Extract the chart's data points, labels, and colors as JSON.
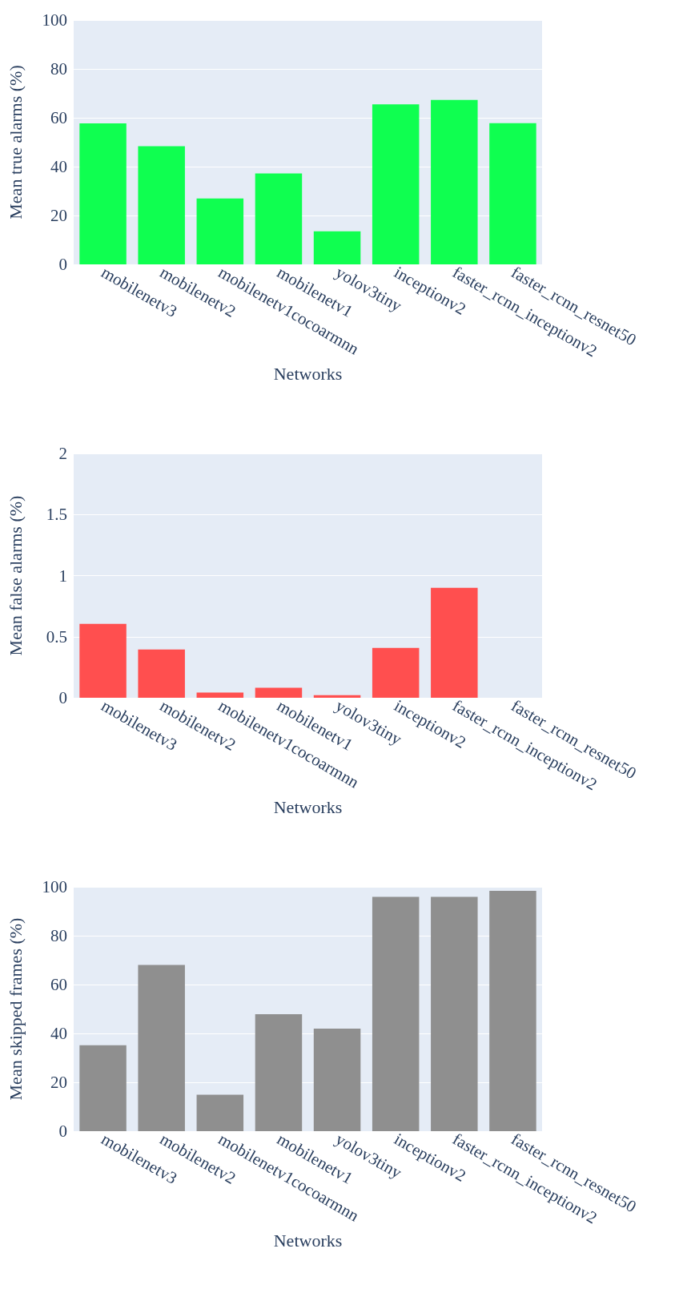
{
  "chart_data": [
    {
      "type": "bar",
      "xlabel": "Networks",
      "ylabel": "Mean true alarms (%)",
      "categories": [
        "mobilenetv3",
        "mobilenetv2",
        "mobilenetv1cocoarmnn",
        "mobilenetv1",
        "yolov3tiny",
        "inceptionv2",
        "faster_rcnn_inceptionv2",
        "faster_rcnn_resnet50"
      ],
      "values": [
        57.7,
        48.4,
        27.0,
        37.2,
        13.5,
        65.5,
        67.3,
        57.8
      ],
      "color": "#0fff50",
      "ylim": [
        0,
        100
      ],
      "yticks": [
        0,
        20,
        40,
        60,
        80,
        100
      ],
      "grid": "y"
    },
    {
      "type": "bar",
      "xlabel": "Networks",
      "ylabel": "Mean false alarms (%)",
      "categories": [
        "mobilenetv3",
        "mobilenetv2",
        "mobilenetv1cocoarmnn",
        "mobilenetv1",
        "yolov3tiny",
        "inceptionv2",
        "faster_rcnn_inceptionv2",
        "faster_rcnn_resnet50"
      ],
      "values": [
        0.605,
        0.395,
        0.043,
        0.082,
        0.021,
        0.409,
        0.9,
        0
      ],
      "color": "#ff4f4f",
      "ylim": [
        0,
        2
      ],
      "yticks": [
        0,
        0.5,
        1,
        1.5,
        2
      ],
      "grid": "y"
    },
    {
      "type": "bar",
      "xlabel": "Networks",
      "ylabel": "Mean skipped frames (%)",
      "categories": [
        "mobilenetv3",
        "mobilenetv2",
        "mobilenetv1cocoarmnn",
        "mobilenetv1",
        "yolov3tiny",
        "inceptionv2",
        "faster_rcnn_inceptionv2",
        "faster_rcnn_resnet50"
      ],
      "values": [
        35.2,
        68.0,
        14.9,
        47.9,
        42.0,
        95.9,
        95.9,
        98.4
      ],
      "color": "#8f8f8f",
      "ylim": [
        0,
        100
      ],
      "yticks": [
        0,
        20,
        40,
        60,
        80,
        100
      ],
      "grid": "y"
    }
  ]
}
